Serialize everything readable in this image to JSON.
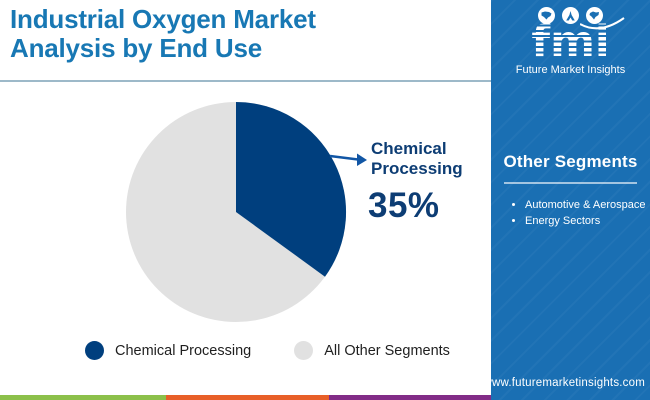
{
  "header": {
    "title": "Industrial Oxygen Market Analysis by End Use"
  },
  "logo": {
    "brand": "fmi",
    "subtitle": "Future Market Insights",
    "icons": [
      "usa-map-icon",
      "landmark-icon",
      "globe-map-icon"
    ]
  },
  "sidebar": {
    "heading": "Other Segments",
    "items": [
      {
        "label": "Automotive & Aerospace"
      },
      {
        "label": "Energy Sectors"
      }
    ],
    "url": "www.futuremarketinsights.com"
  },
  "callout": {
    "label": "Chemical Processing",
    "value": "35%"
  },
  "legend": [
    {
      "label": "Chemical Processing",
      "color": "#003f7e"
    },
    {
      "label": "All Other Segments",
      "color": "#e1e1e1"
    }
  ],
  "chart_data": {
    "type": "pie",
    "title": "Industrial Oxygen Market Analysis by End Use",
    "labels": [
      "Chemical Processing",
      "All Other Segments"
    ],
    "values": [
      35,
      65
    ],
    "colors": [
      "#003f7e",
      "#e1e1e1"
    ],
    "start_angle_deg": 0,
    "direction": "clockwise",
    "annotation": "Chemical Processing 35%",
    "legend_position": "bottom"
  },
  "footer_bar": {
    "colors": [
      "#8cc04a",
      "#e85f28",
      "#822c87"
    ]
  },
  "theme": {
    "title_blue": "#1878b4",
    "sidebar_blue": "#1a6fb3",
    "callout_navy": "#0d3d74",
    "arrow_blue": "#1156a5",
    "divider_gray_blue": "#9db9c9"
  }
}
